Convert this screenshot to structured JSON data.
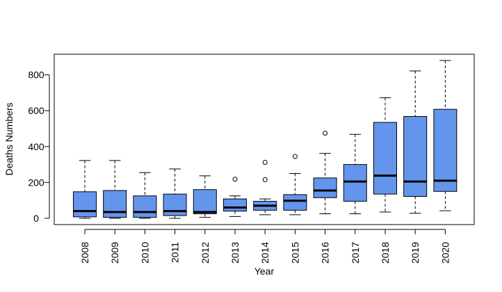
{
  "chart_data": {
    "type": "box",
    "title": "",
    "xlabel": "Year",
    "ylabel": "Deaths Numbers",
    "ylim": [
      -35,
      915
    ],
    "yticks": [
      0,
      200,
      400,
      600,
      800
    ],
    "grid": false,
    "box_color": "#6495ED",
    "categories": [
      "2008",
      "2009",
      "2010",
      "2011",
      "2012",
      "2013",
      "2014",
      "2015",
      "2016",
      "2017",
      "2018",
      "2019",
      "2020"
    ],
    "boxes": [
      {
        "category": "2008",
        "whisker_low": 0,
        "q1": 8,
        "median": 40,
        "q3": 148,
        "whisker_high": 322,
        "outliers": []
      },
      {
        "category": "2009",
        "whisker_low": 0,
        "q1": 5,
        "median": 35,
        "q3": 155,
        "whisker_high": 322,
        "outliers": []
      },
      {
        "category": "2010",
        "whisker_low": 0,
        "q1": 5,
        "median": 35,
        "q3": 125,
        "whisker_high": 255,
        "outliers": []
      },
      {
        "category": "2011",
        "whisker_low": 0,
        "q1": 15,
        "median": 40,
        "q3": 135,
        "whisker_high": 275,
        "outliers": []
      },
      {
        "category": "2012",
        "whisker_low": 5,
        "q1": 25,
        "median": 35,
        "q3": 160,
        "whisker_high": 237,
        "outliers": []
      },
      {
        "category": "2013",
        "whisker_low": 10,
        "q1": 40,
        "median": 60,
        "q3": 108,
        "whisker_high": 125,
        "outliers": [
          218
        ]
      },
      {
        "category": "2014",
        "whisker_low": 20,
        "q1": 45,
        "median": 70,
        "q3": 95,
        "whisker_high": 108,
        "outliers": [
          215,
          312
        ]
      },
      {
        "category": "2015",
        "whisker_low": 20,
        "q1": 45,
        "median": 98,
        "q3": 132,
        "whisker_high": 250,
        "outliers": [
          345
        ]
      },
      {
        "category": "2016",
        "whisker_low": 25,
        "q1": 115,
        "median": 155,
        "q3": 225,
        "whisker_high": 362,
        "outliers": [
          475
        ]
      },
      {
        "category": "2017",
        "whisker_low": 25,
        "q1": 95,
        "median": 205,
        "q3": 300,
        "whisker_high": 468,
        "outliers": []
      },
      {
        "category": "2018",
        "whisker_low": 35,
        "q1": 135,
        "median": 238,
        "q3": 535,
        "whisker_high": 672,
        "outliers": []
      },
      {
        "category": "2019",
        "whisker_low": 28,
        "q1": 122,
        "median": 205,
        "q3": 568,
        "whisker_high": 822,
        "outliers": []
      },
      {
        "category": "2020",
        "whisker_low": 42,
        "q1": 150,
        "median": 210,
        "q3": 608,
        "whisker_high": 880,
        "outliers": []
      }
    ]
  }
}
